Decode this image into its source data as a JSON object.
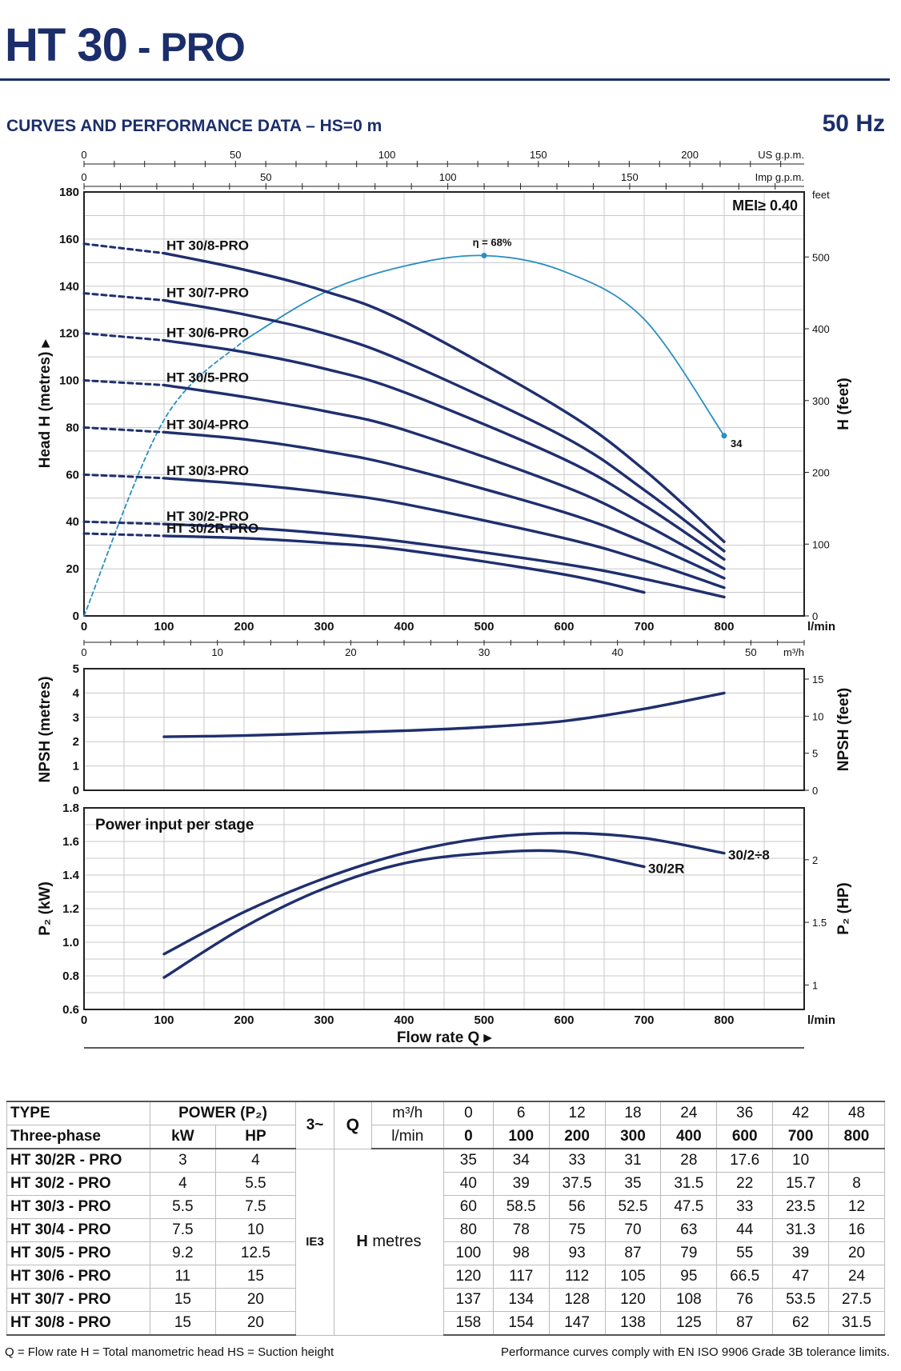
{
  "header": {
    "model": "HT 30",
    "suffix": " - PRO",
    "subtitle": "CURVES AND PERFORMANCE DATA  –  HS=0 m",
    "frequency": "50 Hz"
  },
  "chart_data": [
    {
      "type": "line",
      "title": "",
      "xlabel": "l/min",
      "ylabel": "Head H (metres)",
      "y2label": "H (feet)",
      "xlim": [
        0,
        900
      ],
      "ylim": [
        0,
        180
      ],
      "xticks": [
        0,
        100,
        200,
        300,
        400,
        500,
        600,
        700,
        800
      ],
      "yticks": [
        0,
        20,
        40,
        60,
        80,
        100,
        120,
        140,
        160,
        180
      ],
      "y2ticks": [
        0,
        100,
        200,
        300,
        400,
        500
      ],
      "top_axis_us": {
        "label": "US g.p.m.",
        "ticks": [
          0,
          50,
          100,
          150,
          200
        ]
      },
      "top_axis_imp": {
        "label": "Imp g.p.m.",
        "ticks": [
          0,
          50,
          100,
          150
        ]
      },
      "y2_unit": "feet",
      "mei_label": "MEI≥ 0.40",
      "grid": true,
      "x": [
        0,
        100,
        200,
        300,
        400,
        600,
        700,
        800
      ],
      "series": [
        {
          "name": "HT 30/8-PRO",
          "values": [
            158,
            154,
            147,
            138,
            125,
            87,
            62,
            31.5
          ]
        },
        {
          "name": "HT 30/7-PRO",
          "values": [
            137,
            134,
            128,
            120,
            108,
            76,
            53.5,
            27.5
          ]
        },
        {
          "name": "HT 30/6-PRO",
          "values": [
            120,
            117,
            112,
            105,
            95,
            66.5,
            47,
            24
          ]
        },
        {
          "name": "HT 30/5-PRO",
          "values": [
            100,
            98,
            93,
            87,
            79,
            55,
            39,
            20
          ]
        },
        {
          "name": "HT 30/4-PRO",
          "values": [
            80,
            78,
            75,
            70,
            63,
            44,
            31.3,
            16
          ]
        },
        {
          "name": "HT 30/3-PRO",
          "values": [
            60,
            58.5,
            56,
            52.5,
            47.5,
            33,
            23.5,
            12
          ]
        },
        {
          "name": "HT 30/2-PRO",
          "values": [
            40,
            39,
            37.5,
            35,
            31.5,
            22,
            15.7,
            8
          ]
        },
        {
          "name": "HT 30/2R-PRO",
          "values": [
            35,
            34,
            33,
            31,
            28,
            17.6,
            10,
            null
          ]
        }
      ],
      "efficiency": {
        "x": [
          0,
          100,
          200,
          300,
          400,
          500,
          600,
          700,
          800
        ],
        "values": [
          0,
          37,
          52,
          61,
          66,
          68,
          65,
          56,
          34
        ],
        "peak_label": "η = 68%",
        "end_label": "34"
      }
    },
    {
      "type": "line",
      "title": "",
      "ylabel": "NPSH (metres)",
      "y2label": "NPSH (feet)",
      "top_axis": {
        "label": "m³/h",
        "ticks": [
          0,
          10,
          20,
          30,
          40,
          50
        ]
      },
      "ylim": [
        0,
        5
      ],
      "yticks": [
        0,
        1,
        2,
        3,
        4,
        5
      ],
      "y2ticks": [
        0,
        5,
        10,
        15
      ],
      "x": [
        100,
        200,
        300,
        400,
        500,
        600,
        700,
        800
      ],
      "series": [
        {
          "values": [
            2.2,
            2.25,
            2.35,
            2.45,
            2.6,
            2.85,
            3.35,
            4.0
          ]
        }
      ]
    },
    {
      "type": "line",
      "title": "Power input per stage",
      "xlabel": "Flow rate Q",
      "xunit": "l/min",
      "ylabel": "P₂  (kW)",
      "y2label": "P₂  (HP)",
      "ylim": [
        0.6,
        1.8
      ],
      "yticks": [
        0.6,
        0.8,
        1.0,
        1.2,
        1.4,
        1.6,
        1.8
      ],
      "y2ticks": [
        1,
        1.5,
        2
      ],
      "xticks": [
        0,
        100,
        200,
        300,
        400,
        500,
        600,
        700,
        800
      ],
      "series": [
        {
          "name": "30/2÷8",
          "x": [
            100,
            200,
            300,
            400,
            500,
            600,
            700,
            800
          ],
          "values": [
            0.93,
            1.18,
            1.38,
            1.53,
            1.62,
            1.65,
            1.62,
            1.53
          ]
        },
        {
          "name": "30/2R",
          "x": [
            100,
            200,
            300,
            400,
            500,
            600,
            700
          ],
          "values": [
            0.79,
            1.09,
            1.32,
            1.47,
            1.53,
            1.54,
            1.45
          ]
        }
      ]
    }
  ],
  "table": {
    "head": {
      "type": "TYPE",
      "three_phase": "Three-phase",
      "power": "POWER (P₂)",
      "kw": "kW",
      "hp": "HP",
      "phase": "3~",
      "q": "Q",
      "unit_m3h": "m³/h",
      "unit_lmin": "l/min",
      "m3h": [
        "0",
        "6",
        "12",
        "18",
        "24",
        "36",
        "42",
        "48"
      ],
      "lmin": [
        "0",
        "100",
        "200",
        "300",
        "400",
        "600",
        "700",
        "800"
      ],
      "ie": "IE3",
      "h_label": "H metres"
    },
    "rows": [
      {
        "type": "HT 30/2R - PRO",
        "kw": "3",
        "hp": "4",
        "h": [
          "35",
          "34",
          "33",
          "31",
          "28",
          "17.6",
          "10",
          ""
        ]
      },
      {
        "type": "HT 30/2 - PRO",
        "kw": "4",
        "hp": "5.5",
        "h": [
          "40",
          "39",
          "37.5",
          "35",
          "31.5",
          "22",
          "15.7",
          "8"
        ]
      },
      {
        "type": "HT 30/3 - PRO",
        "kw": "5.5",
        "hp": "7.5",
        "h": [
          "60",
          "58.5",
          "56",
          "52.5",
          "47.5",
          "33",
          "23.5",
          "12"
        ]
      },
      {
        "type": "HT 30/4 - PRO",
        "kw": "7.5",
        "hp": "10",
        "h": [
          "80",
          "78",
          "75",
          "70",
          "63",
          "44",
          "31.3",
          "16"
        ]
      },
      {
        "type": "HT 30/5 - PRO",
        "kw": "9.2",
        "hp": "12.5",
        "h": [
          "100",
          "98",
          "93",
          "87",
          "79",
          "55",
          "39",
          "20"
        ]
      },
      {
        "type": "HT 30/6 - PRO",
        "kw": "11",
        "hp": "15",
        "h": [
          "120",
          "117",
          "112",
          "105",
          "95",
          "66.5",
          "47",
          "24"
        ]
      },
      {
        "type": "HT 30/7 - PRO",
        "kw": "15",
        "hp": "20",
        "h": [
          "137",
          "134",
          "128",
          "120",
          "108",
          "76",
          "53.5",
          "27.5"
        ]
      },
      {
        "type": "HT 30/8 - PRO",
        "kw": "15",
        "hp": "20",
        "h": [
          "158",
          "154",
          "147",
          "138",
          "125",
          "87",
          "62",
          "31.5"
        ]
      }
    ]
  },
  "footer": {
    "left": "Q = Flow rate   H = Total manometric head   HS = Suction height",
    "right": "Performance curves comply with EN ISO 9906 Grade 3B tolerance limits."
  },
  "colors": {
    "curve": "#1f2f6e",
    "efficiency": "#2a8fc1",
    "grid": "#c8c8c8",
    "heading": "#1b2e6b"
  }
}
